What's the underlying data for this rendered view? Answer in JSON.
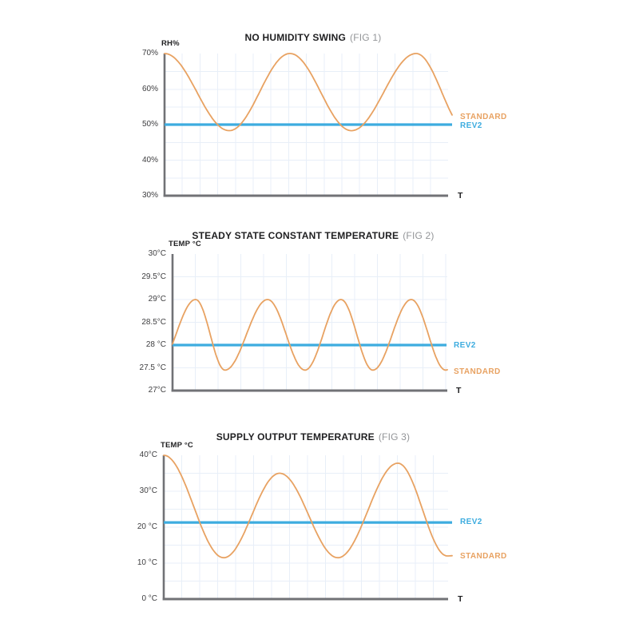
{
  "colors": {
    "standard": "#E8A262",
    "rev2": "#3DACDF",
    "axis": "#717276",
    "grid": "#E8EFF8",
    "tick_text": "#3E3E40",
    "title_text": "#1F1F21",
    "fig_text": "#939598",
    "background": "#FFFFFF"
  },
  "chart_data": [
    {
      "type": "line",
      "title": "NO HUMIDITY SWING",
      "title_suffix": "(FIG 1)",
      "y_axis_label": "RH%",
      "x_axis_label": "T",
      "y_ticks": [
        "70%",
        "60%",
        "50%",
        "40%",
        "30%"
      ],
      "y_tick_values": [
        70,
        60,
        50,
        40,
        30
      ],
      "ylim": [
        30,
        70
      ],
      "grid": true,
      "legend_position": "right",
      "series": [
        {
          "name": "STANDARD",
          "role": "standard",
          "shape": "oscillating",
          "points": [
            [
              0,
              70
            ],
            [
              0.225,
              48.3
            ],
            [
              0.436,
              70
            ],
            [
              0.65,
              48.3
            ],
            [
              0.875,
              70
            ],
            [
              1.053,
              48.3
            ]
          ]
        },
        {
          "name": "REV2",
          "role": "rev2",
          "shape": "constant",
          "value": 50
        }
      ]
    },
    {
      "type": "line",
      "title": "STEADY STATE CONSTANT TEMPERATURE",
      "title_suffix": "(FIG 2)",
      "y_axis_label": "TEMP °C",
      "x_axis_label": "T",
      "y_ticks": [
        "30°C",
        "29.5°C",
        "29°C",
        "28.5°C",
        "28 °C",
        "27.5 °C",
        "27°C"
      ],
      "y_tick_values": [
        30,
        29.5,
        29,
        28.5,
        28,
        27.5,
        27
      ],
      "ylim": [
        27,
        30
      ],
      "grid": true,
      "legend_position": "right",
      "series": [
        {
          "name": "STANDARD",
          "role": "standard",
          "shape": "oscillating",
          "points": [
            [
              -0.06,
              27.45
            ],
            [
              0.084,
              29
            ],
            [
              0.191,
              27.45
            ],
            [
              0.346,
              29
            ],
            [
              0.482,
              27.45
            ],
            [
              0.613,
              29
            ],
            [
              0.729,
              27.45
            ],
            [
              0.869,
              29
            ],
            [
              0.994,
              27.45
            ],
            [
              1.122,
              29
            ]
          ]
        },
        {
          "name": "REV2",
          "role": "rev2",
          "shape": "constant",
          "value": 28
        }
      ]
    },
    {
      "type": "line",
      "title": "SUPPLY OUTPUT TEMPERATURE",
      "title_suffix": "(FIG 3)",
      "y_axis_label": "TEMP °C",
      "x_axis_label": "T",
      "y_ticks": [
        "40°C",
        "30°C",
        "20 °C",
        "10 °C",
        "0 °C"
      ],
      "y_tick_values": [
        40,
        30,
        20,
        10,
        0
      ],
      "ylim": [
        0,
        40
      ],
      "grid": true,
      "legend_position": "right",
      "series": [
        {
          "name": "STANDARD",
          "role": "standard",
          "shape": "oscillating",
          "points": [
            [
              0,
              40
            ],
            [
              0.208,
              11.5
            ],
            [
              0.402,
              35
            ],
            [
              0.604,
              11.5
            ],
            [
              0.812,
              37.8
            ],
            [
              0.983,
              12
            ],
            [
              1.094,
              13
            ]
          ]
        },
        {
          "name": "REV2",
          "role": "rev2",
          "shape": "constant",
          "value": 21.3
        }
      ]
    }
  ]
}
